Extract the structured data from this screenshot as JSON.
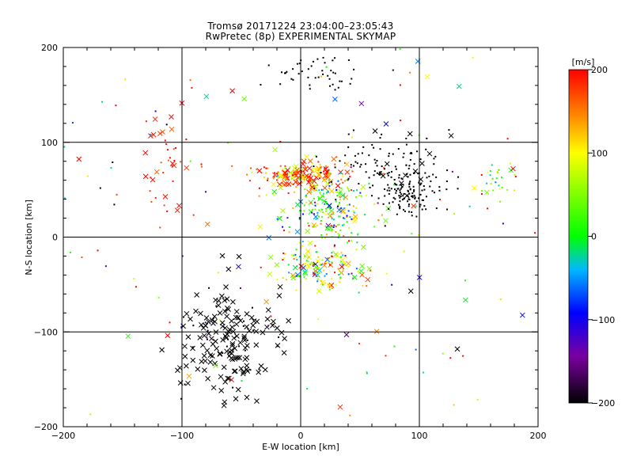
{
  "chart_data": {
    "type": "scatter",
    "title": "Tromsø 20171224 23:04:00–23:05:43",
    "subtitle": "RwPretec (8p) EXPERIMENTAL SKYMAP",
    "xlabel": "E-W location [km]",
    "ylabel": "N-S location [km]",
    "xlim": [
      -200,
      200
    ],
    "ylim": [
      -200,
      200
    ],
    "x_ticks": [
      "−200",
      "−100",
      "0",
      "100",
      "200"
    ],
    "y_ticks": [
      "200",
      "100",
      "0",
      "−100",
      "−200"
    ],
    "grid": true,
    "colorbar": {
      "label": "[m/s]",
      "range": [
        -200,
        200
      ],
      "ticks": [
        "200",
        "100",
        "0",
        "−100",
        "−200"
      ],
      "colors": [
        "#000000",
        "#7a00a0",
        "#0000ff",
        "#00b8ff",
        "#00ff00",
        "#ffff00",
        "#ff8000",
        "#ff0000"
      ]
    },
    "marker_types": [
      "dot",
      "cross"
    ],
    "clusters": [
      {
        "x": 0,
        "y": 65,
        "sx": 20,
        "sy": 7,
        "v_mean": 150,
        "v_sd": 50,
        "n": 180,
        "cross": 0.35
      },
      {
        "x": 25,
        "y": 30,
        "sx": 18,
        "sy": 18,
        "v_mean": 20,
        "v_sd": 80,
        "n": 200,
        "cross": 0.2
      },
      {
        "x": 20,
        "y": -30,
        "sx": 18,
        "sy": 12,
        "v_mean": 60,
        "v_sd": 90,
        "n": 160,
        "cross": 0.3
      },
      {
        "x": 90,
        "y": 50,
        "sx": 15,
        "sy": 12,
        "v_mean": -200,
        "v_sd": 0,
        "n": 140,
        "cross": 0.05
      },
      {
        "x": 70,
        "y": 80,
        "sx": 25,
        "sy": 15,
        "v_mean": -200,
        "v_sd": 0,
        "n": 80,
        "cross": 0.05
      },
      {
        "x": -60,
        "y": -110,
        "sx": 22,
        "sy": 30,
        "v_mean": -200,
        "v_sd": 0,
        "n": 180,
        "cross": 0.8
      },
      {
        "x": 10,
        "y": 170,
        "sx": 22,
        "sy": 10,
        "v_mean": -200,
        "v_sd": 0,
        "n": 45,
        "cross": 0.0
      },
      {
        "x": -115,
        "y": 90,
        "sx": 10,
        "sy": 35,
        "v_mean": 190,
        "v_sd": 20,
        "n": 40,
        "cross": 0.4
      },
      {
        "x": 165,
        "y": 60,
        "sx": 8,
        "sy": 10,
        "v_mean": 50,
        "v_sd": 60,
        "n": 25,
        "cross": 0.2
      },
      {
        "x": 0,
        "y": 0,
        "sx": 140,
        "sy": 140,
        "v_mean": 50,
        "v_sd": 150,
        "n": 200,
        "cross": 0.25
      }
    ]
  }
}
